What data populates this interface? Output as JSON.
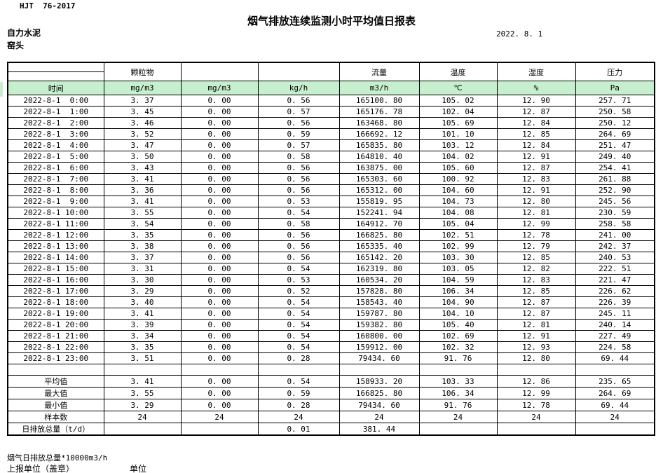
{
  "page": {
    "code": "HJT  76-2017",
    "title": "烟气排放连续监测小时平均值日报表",
    "date": "2022. 8. 1",
    "company": "自力水泥",
    "station": "窑头",
    "footer_note": "烟气日排放总量*10000m3/h",
    "footer_report_unit": "上报单位（盖章）",
    "footer_unit": "单位"
  },
  "table": {
    "colors": {
      "unit_row_bg": "#c6efce",
      "border": "#000000"
    },
    "group_headers": [
      "",
      "颗粒物",
      "",
      "",
      "流量",
      "温度",
      "湿度",
      "压力"
    ],
    "unit_row": [
      "时间",
      "mg/m3",
      "mg/m3",
      "kg/h",
      "m3/h",
      "℃",
      "%",
      "Pa"
    ],
    "rows": [
      [
        "2022-8-1  0:00",
        "3. 37",
        "0. 00",
        "0. 56",
        "165100. 80",
        "105. 02",
        "12. 90",
        "257. 71"
      ],
      [
        "2022-8-1  1:00",
        "3. 45",
        "0. 00",
        "0. 57",
        "165176. 78",
        "102. 04",
        "12. 87",
        "250. 58"
      ],
      [
        "2022-8-1  2:00",
        "3. 46",
        "0. 00",
        "0. 56",
        "163468. 80",
        "105. 69",
        "12. 84",
        "250. 12"
      ],
      [
        "2022-8-1  3:00",
        "3. 52",
        "0. 00",
        "0. 59",
        "166692. 12",
        "101. 10",
        "12. 85",
        "264. 69"
      ],
      [
        "2022-8-1  4:00",
        "3. 47",
        "0. 00",
        "0. 57",
        "165835. 80",
        "103. 12",
        "12. 84",
        "251. 47"
      ],
      [
        "2022-8-1  5:00",
        "3. 50",
        "0. 00",
        "0. 58",
        "164810. 40",
        "104. 02",
        "12. 91",
        "249. 40"
      ],
      [
        "2022-8-1  6:00",
        "3. 43",
        "0. 00",
        "0. 56",
        "163875. 00",
        "105. 60",
        "12. 87",
        "254. 41"
      ],
      [
        "2022-8-1  7:00",
        "3. 41",
        "0. 00",
        "0. 56",
        "165303. 60",
        "100. 92",
        "12. 83",
        "261. 88"
      ],
      [
        "2022-8-1  8:00",
        "3. 36",
        "0. 00",
        "0. 56",
        "165312. 00",
        "104. 60",
        "12. 91",
        "252. 90"
      ],
      [
        "2022-8-1  9:00",
        "3. 41",
        "0. 00",
        "0. 53",
        "155819. 95",
        "104. 73",
        "12. 80",
        "245. 56"
      ],
      [
        "2022-8-1 10:00",
        "3. 55",
        "0. 00",
        "0. 54",
        "152241. 94",
        "104. 08",
        "12. 81",
        "230. 59"
      ],
      [
        "2022-8-1 11:00",
        "3. 54",
        "0. 00",
        "0. 58",
        "164912. 70",
        "105. 04",
        "12. 99",
        "258. 58"
      ],
      [
        "2022-8-1 12:00",
        "3. 35",
        "0. 00",
        "0. 56",
        "166825. 80",
        "102. 51",
        "12. 78",
        "241. 00"
      ],
      [
        "2022-8-1 13:00",
        "3. 38",
        "0. 00",
        "0. 56",
        "165335. 40",
        "102. 99",
        "12. 79",
        "242. 37"
      ],
      [
        "2022-8-1 14:00",
        "3. 37",
        "0. 00",
        "0. 56",
        "165142. 20",
        "103. 30",
        "12. 85",
        "240. 53"
      ],
      [
        "2022-8-1 15:00",
        "3. 31",
        "0. 00",
        "0. 54",
        "162319. 80",
        "103. 05",
        "12. 82",
        "222. 51"
      ],
      [
        "2022-8-1 16:00",
        "3. 30",
        "0. 00",
        "0. 53",
        "160534. 20",
        "104. 59",
        "12. 83",
        "221. 47"
      ],
      [
        "2022-8-1 17:00",
        "3. 29",
        "0. 00",
        "0. 52",
        "157828. 80",
        "106. 34",
        "12. 85",
        "226. 62"
      ],
      [
        "2022-8-1 18:00",
        "3. 40",
        "0. 00",
        "0. 54",
        "158543. 40",
        "104. 90",
        "12. 87",
        "226. 39"
      ],
      [
        "2022-8-1 19:00",
        "3. 41",
        "0. 00",
        "0. 54",
        "159787. 80",
        "104. 10",
        "12. 87",
        "245. 11"
      ],
      [
        "2022-8-1 20:00",
        "3. 39",
        "0. 00",
        "0. 54",
        "159382. 80",
        "105. 40",
        "12. 81",
        "240. 14"
      ],
      [
        "2022-8-1 21:00",
        "3. 34",
        "0. 00",
        "0. 54",
        "160800. 00",
        "102. 69",
        "12. 91",
        "227. 49"
      ],
      [
        "2022-8-1 22:00",
        "3. 35",
        "0. 00",
        "0. 54",
        "159912. 00",
        "102. 32",
        "12. 93",
        "224. 58"
      ],
      [
        "2022-8-1 23:00",
        "3. 51",
        "0. 00",
        "0. 28",
        "79434. 60",
        "91. 76",
        "12. 80",
        "69. 44"
      ]
    ],
    "summary_rows": [
      [
        "",
        "",
        "",
        "",
        "",
        "",
        "",
        ""
      ],
      [
        "平均值",
        "3. 41",
        "0. 00",
        "0. 54",
        "158933. 20",
        "103. 33",
        "12. 86",
        "235. 65"
      ],
      [
        "最大值",
        "3. 55",
        "0. 00",
        "0. 59",
        "166825. 80",
        "106. 34",
        "12. 99",
        "264. 69"
      ],
      [
        "最小值",
        "3. 29",
        "0. 00",
        "0. 28",
        "79434. 60",
        "91. 76",
        "12. 78",
        "69. 44"
      ],
      [
        "样本数",
        "24",
        "24",
        "24",
        "24",
        "24",
        "24",
        "24"
      ],
      [
        "日排放总量（t/d）",
        "",
        "",
        "0. 01",
        "381. 44",
        "",
        "",
        ""
      ]
    ]
  }
}
